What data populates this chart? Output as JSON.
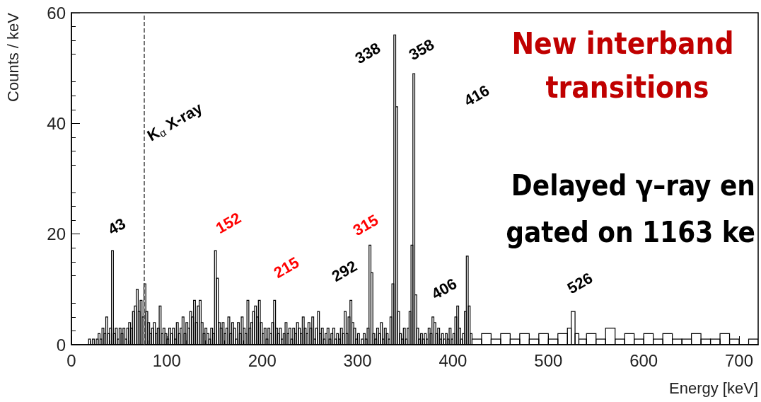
{
  "chart_data": {
    "type": "histogram",
    "xlabel": "Energy [keV]",
    "ylabel": "Counts / keV",
    "bins": [
      0,
      18,
      20,
      22,
      24,
      26,
      28,
      30,
      32,
      34,
      36,
      38,
      40,
      42,
      44,
      46,
      48,
      50,
      52,
      54,
      56,
      58,
      60,
      62,
      64,
      66,
      68,
      70,
      72,
      74,
      76,
      78,
      80,
      82,
      84,
      86,
      88,
      90,
      92,
      94,
      96,
      98,
      100,
      102,
      104,
      106,
      108,
      110,
      112,
      114,
      116,
      118,
      120,
      122,
      124,
      126,
      128,
      130,
      132,
      134,
      136,
      138,
      140,
      142,
      144,
      146,
      148,
      150,
      152,
      154,
      156,
      158,
      160,
      162,
      164,
      166,
      168,
      170,
      172,
      174,
      176,
      178,
      180,
      182,
      184,
      186,
      188,
      190,
      192,
      194,
      196,
      198,
      200,
      202,
      204,
      206,
      208,
      210,
      212,
      214,
      216,
      218,
      220,
      222,
      224,
      226,
      228,
      230,
      232,
      234,
      236,
      238,
      240,
      242,
      244,
      246,
      248,
      250,
      252,
      254,
      256,
      258,
      260,
      262,
      264,
      266,
      268,
      270,
      272,
      274,
      276,
      278,
      280,
      282,
      284,
      286,
      288,
      290,
      292,
      294,
      296,
      298,
      300,
      302,
      304,
      306,
      308,
      310,
      312,
      314,
      316,
      318,
      320,
      322,
      324,
      326,
      328,
      330,
      332,
      334,
      336,
      338,
      340,
      342,
      344,
      346,
      348,
      350,
      352,
      354,
      356,
      358,
      360,
      362,
      364,
      366,
      368,
      370,
      372,
      374,
      376,
      378,
      380,
      382,
      384,
      386,
      388,
      390,
      392,
      394,
      396,
      398,
      400,
      402,
      404,
      406,
      408,
      410,
      412,
      414,
      416,
      418,
      420,
      430,
      440,
      450,
      460,
      470,
      480,
      490,
      500,
      510,
      520,
      524,
      528,
      532,
      540,
      550,
      560,
      570,
      580,
      590,
      600,
      610,
      620,
      630,
      640,
      650,
      660,
      670,
      680,
      690,
      700,
      710,
      720
    ],
    "values": [
      0,
      1,
      0,
      1,
      0,
      1,
      2,
      1,
      3,
      2,
      5,
      2,
      3,
      17,
      2,
      3,
      1,
      3,
      2,
      3,
      1,
      3,
      4,
      3,
      6,
      7,
      10,
      6,
      8,
      5,
      11,
      6,
      4,
      2,
      3,
      4,
      2,
      3,
      7,
      2,
      3,
      2,
      1,
      3,
      2,
      3,
      1,
      4,
      2,
      3,
      5,
      2,
      4,
      3,
      6,
      5,
      8,
      4,
      7,
      8,
      4,
      2,
      3,
      2,
      1,
      3,
      2,
      17,
      12,
      4,
      3,
      4,
      2,
      3,
      5,
      2,
      4,
      3,
      1,
      4,
      2,
      5,
      3,
      2,
      8,
      3,
      4,
      6,
      7,
      5,
      8,
      4,
      2,
      3,
      1,
      3,
      2,
      4,
      8,
      3,
      2,
      3,
      1,
      2,
      4,
      2,
      3,
      1,
      3,
      2,
      4,
      3,
      2,
      5,
      3,
      2,
      4,
      3,
      5,
      1,
      3,
      6,
      2,
      3,
      1,
      2,
      3,
      1,
      2,
      3,
      1,
      2,
      1,
      3,
      2,
      6,
      2,
      5,
      8,
      4,
      3,
      1,
      2,
      0,
      1,
      2,
      1,
      3,
      18,
      13,
      2,
      1,
      3,
      2,
      4,
      1,
      3,
      2,
      1,
      5,
      11,
      56,
      43,
      6,
      2,
      1,
      3,
      1,
      3,
      6,
      18,
      49,
      9,
      3,
      1,
      2,
      1,
      2,
      1,
      3,
      2,
      5,
      4,
      2,
      3,
      1,
      2,
      1,
      2,
      1,
      3,
      1,
      2,
      5,
      7,
      3,
      1,
      2,
      6,
      16,
      7,
      2,
      1,
      2,
      1,
      2,
      1,
      2,
      1,
      2,
      1,
      2,
      3,
      6,
      2,
      1,
      2,
      1,
      3,
      1,
      2,
      1,
      2,
      1,
      2,
      1,
      1,
      2,
      1,
      1,
      2,
      1,
      0,
      1
    ],
    "color": "#000000",
    "xlim": [
      0,
      720
    ],
    "xticks": [
      0,
      100,
      200,
      300,
      400,
      500,
      600,
      700
    ],
    "ylim": [
      0,
      60
    ],
    "yticks": [
      0,
      20,
      40,
      60
    ],
    "grid": false,
    "ref_lines": [
      {
        "axis": "x",
        "value": 76,
        "line_style": "dashed",
        "color": "#444444"
      }
    ],
    "annotations": [
      "43",
      "K$_{α}$ X-ray",
      "152",
      "215",
      "292",
      "315",
      "338",
      "358",
      "416",
      "406",
      "526",
      "New interband transitions",
      "Delayed γ–ray en",
      "gated on 1163 ke"
    ]
  }
}
